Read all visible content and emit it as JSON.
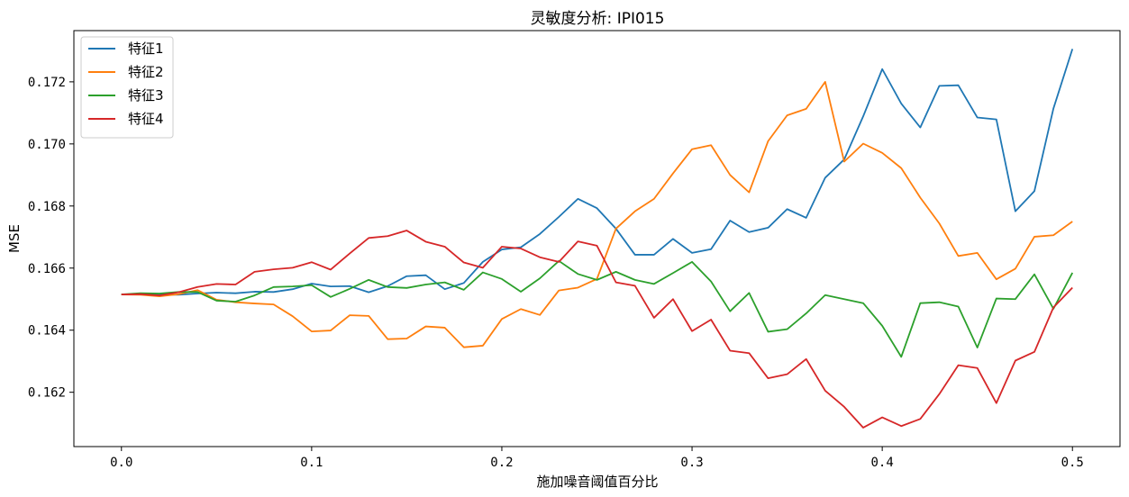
{
  "chart_data": {
    "type": "line",
    "title": "灵敏度分析: IPI015",
    "xlabel": "施加噪音阈值百分比",
    "ylabel": "MSE",
    "xlim": [
      -0.025,
      0.525
    ],
    "ylim": [
      0.16025,
      0.17365
    ],
    "x_ticks": [
      0.0,
      0.1,
      0.2,
      0.3,
      0.4,
      0.5
    ],
    "x_tick_labels": [
      "0.0",
      "0.1",
      "0.2",
      "0.3",
      "0.4",
      "0.5"
    ],
    "y_ticks": [
      0.162,
      0.164,
      0.166,
      0.168,
      0.17,
      0.172
    ],
    "y_tick_labels": [
      "0.162",
      "0.164",
      "0.166",
      "0.168",
      "0.170",
      "0.172"
    ],
    "grid": false,
    "legend_position": "top-left",
    "x": [
      0.0,
      0.01,
      0.02,
      0.03,
      0.04,
      0.05,
      0.06,
      0.07,
      0.08,
      0.09,
      0.1,
      0.11,
      0.12,
      0.13,
      0.14,
      0.15,
      0.16,
      0.17,
      0.18,
      0.19,
      0.2,
      0.21,
      0.22,
      0.23,
      0.24,
      0.25,
      0.26,
      0.27,
      0.28,
      0.29,
      0.3,
      0.31,
      0.32,
      0.33,
      0.34,
      0.35,
      0.36,
      0.37,
      0.38,
      0.39,
      0.4,
      0.41,
      0.42,
      0.43,
      0.44,
      0.45,
      0.46,
      0.47,
      0.48,
      0.49,
      0.5
    ],
    "series": [
      {
        "name": "特征1",
        "color": "#1f77b4",
        "values": [
          0.16515,
          0.16516,
          0.16515,
          0.16514,
          0.16518,
          0.16521,
          0.16519,
          0.16524,
          0.16523,
          0.16532,
          0.1655,
          0.16541,
          0.16542,
          0.16522,
          0.16542,
          0.16574,
          0.16577,
          0.16532,
          0.16552,
          0.1662,
          0.1666,
          0.16667,
          0.1671,
          0.16765,
          0.16823,
          0.16793,
          0.16727,
          0.16643,
          0.16643,
          0.16694,
          0.16649,
          0.16661,
          0.16753,
          0.16716,
          0.1673,
          0.1679,
          0.16762,
          0.16891,
          0.1695,
          0.17089,
          0.17241,
          0.1713,
          0.17053,
          0.17187,
          0.17189,
          0.17085,
          0.17079,
          0.16783,
          0.16848,
          0.17114,
          0.17306
        ]
      },
      {
        "name": "特征2",
        "color": "#ff7f0e",
        "values": [
          0.16515,
          0.16514,
          0.16509,
          0.16516,
          0.16529,
          0.16498,
          0.1649,
          0.16486,
          0.16483,
          0.16445,
          0.16396,
          0.16399,
          0.16448,
          0.16446,
          0.16371,
          0.16373,
          0.16412,
          0.16408,
          0.16345,
          0.1635,
          0.16436,
          0.16468,
          0.16449,
          0.16528,
          0.16537,
          0.16565,
          0.16727,
          0.16783,
          0.16823,
          0.16905,
          0.16983,
          0.16996,
          0.169,
          0.16844,
          0.17009,
          0.17092,
          0.17113,
          0.172,
          0.16943,
          0.17001,
          0.16971,
          0.16922,
          0.16827,
          0.16744,
          0.16639,
          0.16649,
          0.16564,
          0.16598,
          0.16701,
          0.16706,
          0.1675
        ]
      },
      {
        "name": "特征3",
        "color": "#2ca02c",
        "values": [
          0.16515,
          0.16519,
          0.16518,
          0.16523,
          0.16523,
          0.16495,
          0.16492,
          0.16512,
          0.16539,
          0.16541,
          0.16545,
          0.16507,
          0.16533,
          0.16562,
          0.16539,
          0.16536,
          0.16547,
          0.16554,
          0.1653,
          0.16586,
          0.16565,
          0.16524,
          0.16567,
          0.16623,
          0.16581,
          0.16562,
          0.16588,
          0.16562,
          0.16549,
          0.16584,
          0.1662,
          0.16557,
          0.16461,
          0.1652,
          0.16395,
          0.16403,
          0.16454,
          0.16513,
          0.165,
          0.16487,
          0.16414,
          0.16314,
          0.16487,
          0.1649,
          0.16476,
          0.16344,
          0.16502,
          0.165,
          0.1658,
          0.16469,
          0.16585
        ]
      },
      {
        "name": "特征4",
        "color": "#d62728",
        "values": [
          0.16515,
          0.16516,
          0.16512,
          0.16522,
          0.16539,
          0.16549,
          0.16547,
          0.16588,
          0.16596,
          0.16601,
          0.16619,
          0.16595,
          0.16647,
          0.16697,
          0.16703,
          0.16721,
          0.16685,
          0.16669,
          0.16618,
          0.16601,
          0.16669,
          0.16663,
          0.16635,
          0.1662,
          0.16686,
          0.16672,
          0.16554,
          0.16543,
          0.1644,
          0.165,
          0.16397,
          0.16434,
          0.16334,
          0.16326,
          0.16245,
          0.16258,
          0.16307,
          0.16205,
          0.16153,
          0.16086,
          0.16119,
          0.16091,
          0.16114,
          0.16194,
          0.16287,
          0.16278,
          0.16165,
          0.16302,
          0.1633,
          0.16473,
          0.16537
        ]
      }
    ]
  }
}
